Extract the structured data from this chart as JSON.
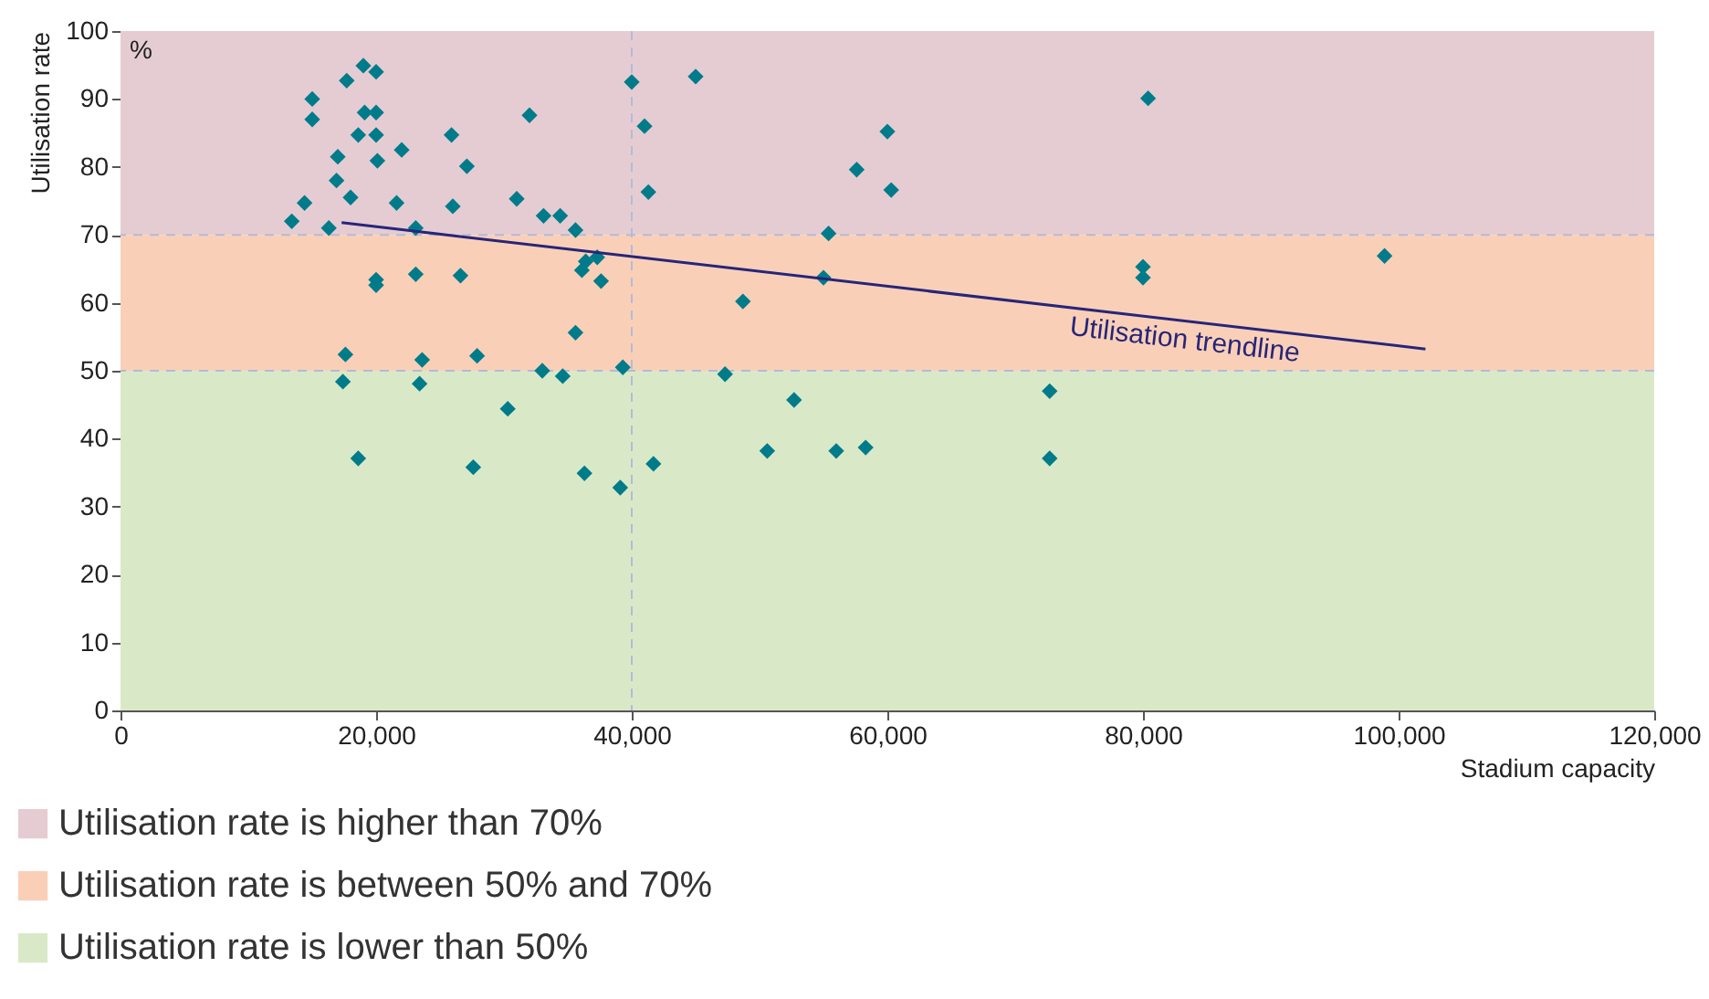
{
  "chart_data": {
    "type": "scatter",
    "xlabel": "Stadium capacity",
    "ylabel": "Utilisation rate",
    "annotations": [
      "%"
    ],
    "xlim": [
      0,
      120000
    ],
    "xticks": [
      {
        "value": 0,
        "label": "0"
      },
      {
        "value": 20000,
        "label": "20,000"
      },
      {
        "value": 40000,
        "label": "40,000"
      },
      {
        "value": 60000,
        "label": "60,000"
      },
      {
        "value": 80000,
        "label": "80,000"
      },
      {
        "value": 100000,
        "label": "100,000"
      },
      {
        "value": 120000,
        "label": "120,000"
      }
    ],
    "ylim": [
      0,
      100
    ],
    "yticks": [
      0,
      10,
      20,
      30,
      40,
      50,
      60,
      70,
      80,
      90,
      100
    ],
    "legend": "bottom left",
    "bands": [
      {
        "axis": "y",
        "from": 70,
        "to": 100,
        "label": "Utilisation rate is higher than 70%",
        "color": "#e5ccd3"
      },
      {
        "axis": "y",
        "from": 50,
        "to": 70,
        "label": "Utilisation rate is between 50% and 70%",
        "color": "#f9d0b7"
      },
      {
        "axis": "y",
        "from": 0,
        "to": 50,
        "label": "Utilisation rate is lower than 50%",
        "color": "#d9e9c8"
      }
    ],
    "ref_lines": [
      {
        "axis": "y",
        "value": 70,
        "color": "#b4bad6",
        "line_style": "dashed"
      },
      {
        "axis": "y",
        "value": 50,
        "color": "#b4bad6",
        "line_style": "dashed"
      },
      {
        "axis": "x",
        "value": 40000,
        "color": "#b4bad6",
        "line_style": "dashed"
      }
    ],
    "series": [
      {
        "type": "scatter",
        "marker": "diamond",
        "color": "#007b8a",
        "x": [
          13400,
          14400,
          15000,
          15000,
          16300,
          16900,
          17000,
          17700,
          18000,
          18600,
          19000,
          19100,
          20000,
          20000,
          20000,
          20100,
          20000,
          20000,
          21600,
          22000,
          23100,
          23100,
          25900,
          26000,
          27100,
          26600,
          32000,
          31000,
          33100,
          34400,
          35600,
          36400,
          36100,
          37600,
          35600,
          37300,
          17600,
          17400,
          23600,
          23400,
          27900,
          30300,
          33000,
          34600,
          39300,
          47300,
          52700,
          18600,
          27600,
          36300,
          39100,
          41700,
          50600,
          56000,
          58300,
          80400,
          80000,
          80000,
          98900,
          72700,
          72700,
          40000,
          45000,
          41000,
          41300,
          57600,
          60000,
          60300,
          55400,
          55000,
          48700
        ],
        "values": [
          72.0,
          74.7,
          90.0,
          87.0,
          71.0,
          78.0,
          81.5,
          92.7,
          75.5,
          84.7,
          94.9,
          88.0,
          94.0,
          88.0,
          84.7,
          80.9,
          63.4,
          62.6,
          74.7,
          82.5,
          71.0,
          64.2,
          84.7,
          74.2,
          80.1,
          64.0,
          87.6,
          75.3,
          72.8,
          72.8,
          70.7,
          66.1,
          64.8,
          63.2,
          55.6,
          66.7,
          52.4,
          48.4,
          51.6,
          48.1,
          52.2,
          44.4,
          50.0,
          49.2,
          50.5,
          49.5,
          45.7,
          37.1,
          35.8,
          34.9,
          32.8,
          36.3,
          38.2,
          38.2,
          38.7,
          90.1,
          65.3,
          63.7,
          66.9,
          47.0,
          37.1,
          92.5,
          93.3,
          86.0,
          76.3,
          79.6,
          85.2,
          76.6,
          70.2,
          63.7,
          60.2
        ]
      },
      {
        "type": "line",
        "name": "Utilisation trendline",
        "color": "#27257a",
        "x": [
          17300,
          102100
        ],
        "values": [
          71.8,
          53.2
        ]
      }
    ]
  }
}
